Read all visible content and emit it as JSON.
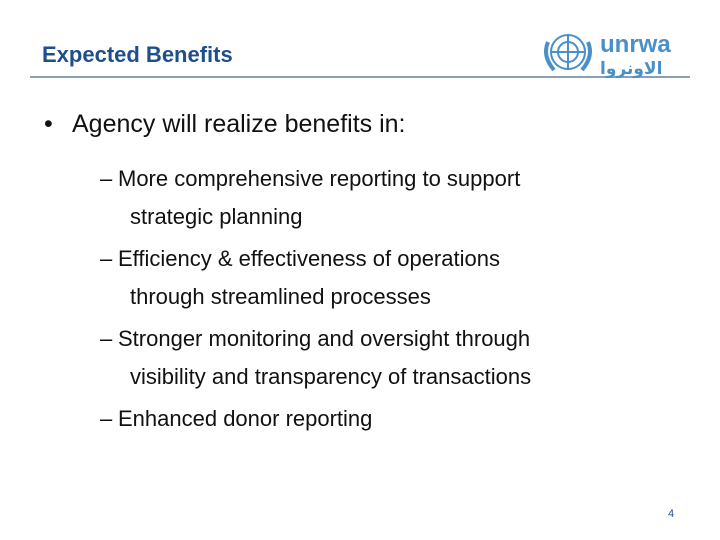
{
  "header": {
    "title": "Expected Benefits",
    "logo": {
      "latin": "unrwa",
      "arabic": "الاونروا"
    }
  },
  "body": {
    "bullet": "Agency will realize benefits in:",
    "items": [
      {
        "lines": [
          "More comprehensive reporting to support",
          "strategic planning"
        ]
      },
      {
        "lines": [
          "Efficiency & effectiveness of operations",
          "through streamlined processes"
        ]
      },
      {
        "lines": [
          "Stronger monitoring and oversight through",
          "visibility and transparency of transactions"
        ]
      },
      {
        "lines": [
          "Enhanced donor reporting"
        ]
      }
    ]
  },
  "footer": {
    "page_number": "4"
  }
}
